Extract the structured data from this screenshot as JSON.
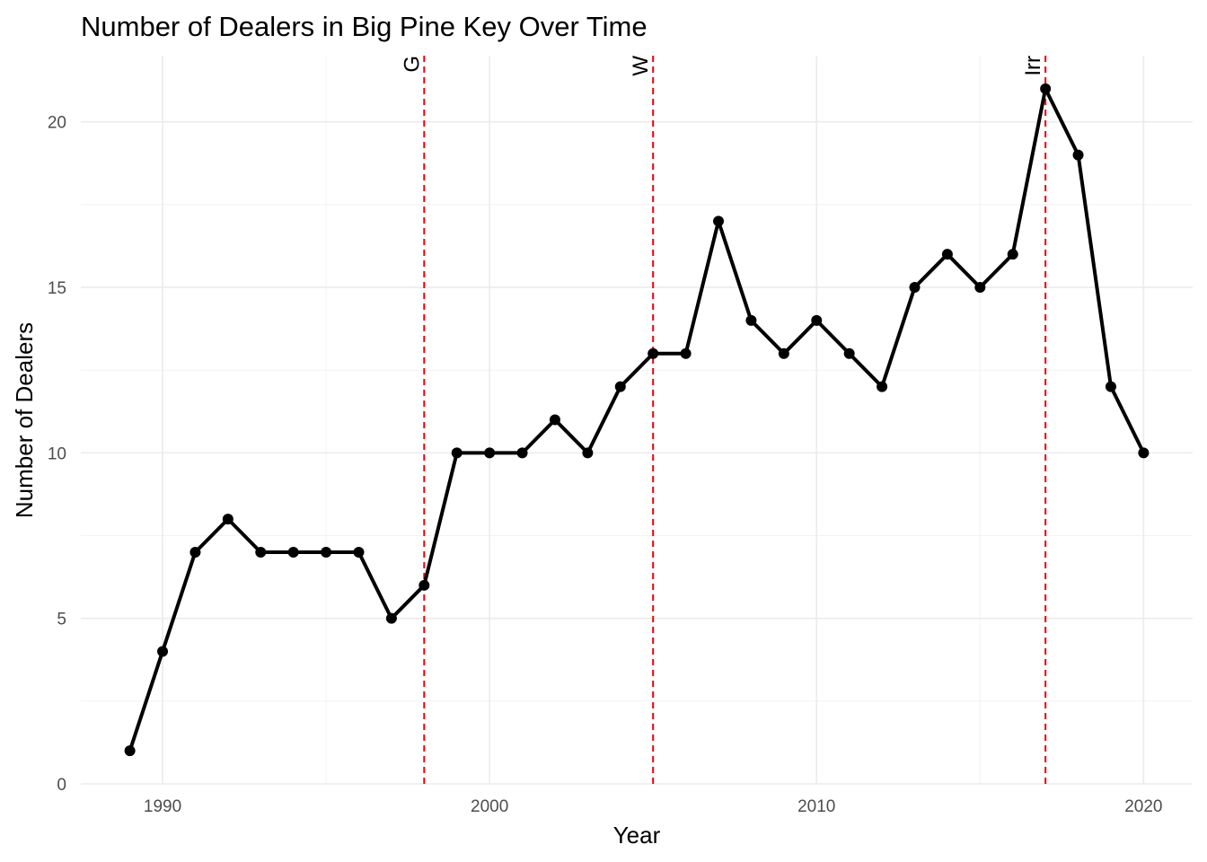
{
  "chart_data": {
    "type": "line",
    "title": "Number of Dealers in Big Pine Key Over Time",
    "xlabel": "Year",
    "ylabel": "Number of Dealers",
    "xlim": [
      1987.5,
      2021.5
    ],
    "ylim": [
      0,
      22
    ],
    "xticks": [
      1990,
      2000,
      2010,
      2020
    ],
    "yticks": [
      0,
      5,
      10,
      15,
      20
    ],
    "grid": true,
    "series": [
      {
        "x": [
          1989,
          1990,
          1991,
          1992,
          1993,
          1994,
          1995,
          1996,
          1997,
          1998,
          1999,
          2000,
          2001,
          2002,
          2003,
          2004,
          2005,
          2006,
          2007,
          2008,
          2009,
          2010,
          2011,
          2012,
          2013,
          2014,
          2015,
          2016,
          2017,
          2018,
          2019,
          2020
        ],
        "y": [
          1,
          4,
          7,
          8,
          7,
          7,
          7,
          7,
          5,
          6,
          10,
          10,
          10,
          11,
          10,
          12,
          13,
          13,
          17,
          14,
          13,
          14,
          13,
          12,
          15,
          16,
          15,
          16,
          21,
          19,
          12,
          10
        ],
        "color": "#000000"
      }
    ],
    "annotations": [
      {
        "x": 1998,
        "label": "G",
        "color": "#e8000b"
      },
      {
        "x": 2005,
        "label": "W",
        "color": "#e8000b"
      },
      {
        "x": 2017,
        "label": "Irr",
        "color": "#e8000b"
      }
    ]
  }
}
